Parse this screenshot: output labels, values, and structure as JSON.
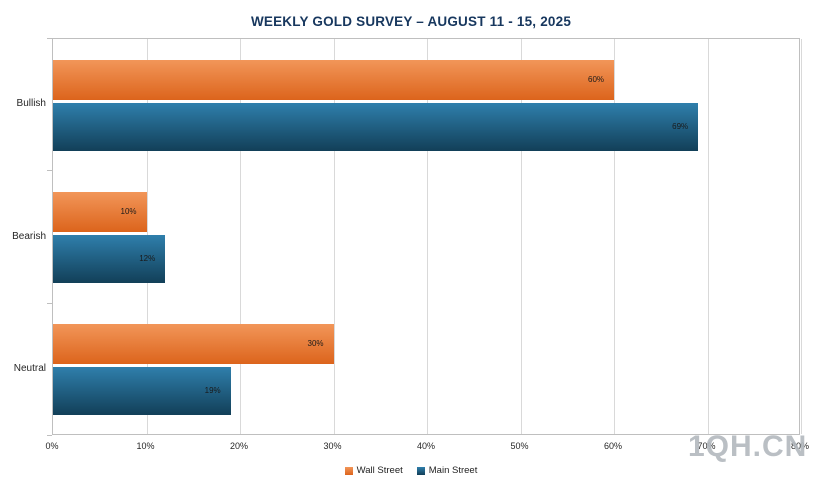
{
  "title": "WEEKLY GOLD SURVEY – AUGUST 11  - 15, 2025",
  "watermark": "1QH.CN",
  "chart_data": {
    "type": "bar",
    "orientation": "horizontal",
    "title": "WEEKLY GOLD SURVEY – AUGUST 11  - 15, 2025",
    "categories": [
      "Bullish",
      "Bearish",
      "Neutral"
    ],
    "series": [
      {
        "name": "Wall Street",
        "color_top": "#F29659",
        "color_bottom": "#DC641C",
        "values": [
          60,
          10,
          30
        ],
        "data_labels": [
          "60%",
          "10%",
          "30%"
        ]
      },
      {
        "name": "Main Street",
        "color_top": "#2F7FAC",
        "color_bottom": "#123F58",
        "values": [
          69,
          12,
          19
        ],
        "data_labels": [
          "69%",
          "12%",
          "19%"
        ]
      }
    ],
    "xlim": [
      0,
      80
    ],
    "x_ticks": [
      "0%",
      "10%",
      "20%",
      "30%",
      "40%",
      "50%",
      "60%",
      "70%",
      "80%"
    ],
    "xlabel": "",
    "ylabel": "",
    "grid": true,
    "legend_position": "bottom",
    "data_label_format": "percent"
  }
}
